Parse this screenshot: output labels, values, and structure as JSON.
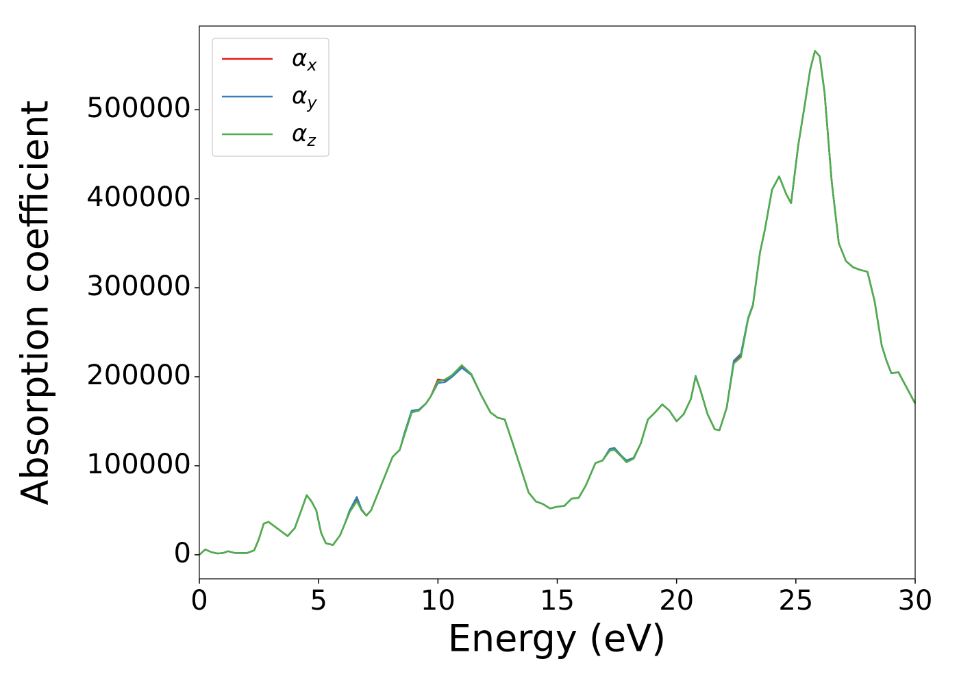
{
  "chart_data": {
    "type": "line",
    "xlabel": "Energy (eV)",
    "ylabel": "Absorption coefficient",
    "x": [
      0,
      0.25,
      0.5,
      0.75,
      1.0,
      1.2,
      1.5,
      2.0,
      2.3,
      2.5,
      2.7,
      2.9,
      3.2,
      3.5,
      3.7,
      4.0,
      4.3,
      4.5,
      4.7,
      4.9,
      5.1,
      5.3,
      5.6,
      5.9,
      6.1,
      6.3,
      6.6,
      6.8,
      7.0,
      7.2,
      7.5,
      7.8,
      8.1,
      8.4,
      8.6,
      8.9,
      9.2,
      9.5,
      9.7,
      10.0,
      10.3,
      10.6,
      11.0,
      11.4,
      11.8,
      12.2,
      12.5,
      12.8,
      13.1,
      13.5,
      13.8,
      14.1,
      14.4,
      14.7,
      15.0,
      15.3,
      15.6,
      15.9,
      16.2,
      16.6,
      16.9,
      17.2,
      17.4,
      17.7,
      17.9,
      18.2,
      18.5,
      18.8,
      19.1,
      19.4,
      19.7,
      20.0,
      20.3,
      20.6,
      20.8,
      21.0,
      21.3,
      21.6,
      21.8,
      22.1,
      22.4,
      22.7,
      23.0,
      23.2,
      23.5,
      23.7,
      24.0,
      24.3,
      24.6,
      24.8,
      25.1,
      25.4,
      25.6,
      25.8,
      26.0,
      26.2,
      26.5,
      26.8,
      27.1,
      27.4,
      27.7,
      28.0,
      28.3,
      28.6,
      28.8,
      29.0,
      29.3,
      29.6,
      30.0
    ],
    "series": [
      {
        "name": "αx",
        "color": "#e41a1c",
        "values": [
          0,
          6000,
          3000,
          1500,
          2000,
          4000,
          2000,
          2000,
          5000,
          18000,
          35000,
          37000,
          31000,
          25000,
          21000,
          30000,
          52000,
          67000,
          60000,
          50000,
          25000,
          13000,
          11000,
          22000,
          35000,
          48000,
          62000,
          50000,
          44000,
          50000,
          70000,
          90000,
          110000,
          118000,
          135000,
          160000,
          162000,
          170000,
          178000,
          197000,
          196000,
          202000,
          212000,
          203000,
          180000,
          160000,
          154000,
          152000,
          128000,
          95000,
          70000,
          60000,
          57000,
          52000,
          54000,
          55000,
          63000,
          64000,
          78000,
          103000,
          106000,
          117000,
          118000,
          110000,
          104000,
          108000,
          125000,
          152000,
          160000,
          169000,
          162000,
          150000,
          158000,
          175000,
          200000,
          185000,
          158000,
          141000,
          140000,
          165000,
          216000,
          224000,
          265000,
          280000,
          340000,
          365000,
          410000,
          425000,
          405000,
          395000,
          460000,
          510000,
          545000,
          566000,
          560000,
          520000,
          420000,
          350000,
          330000,
          323000,
          320000,
          318000,
          285000,
          235000,
          218000,
          204000,
          205000,
          190000,
          170000
        ]
      },
      {
        "name": "αy",
        "color": "#377eb8",
        "values": [
          0,
          6000,
          3000,
          1500,
          2000,
          4000,
          2000,
          2000,
          5000,
          18000,
          35000,
          37000,
          31000,
          25000,
          21000,
          30000,
          52000,
          67000,
          60000,
          50000,
          25000,
          13000,
          11000,
          22000,
          35000,
          50000,
          65000,
          51000,
          44000,
          50000,
          70000,
          90000,
          110000,
          118000,
          137000,
          162000,
          163000,
          170000,
          178000,
          193000,
          194000,
          200000,
          210000,
          202000,
          180000,
          160000,
          154000,
          152000,
          128000,
          95000,
          70000,
          60000,
          57000,
          52000,
          54000,
          55000,
          63000,
          64000,
          78000,
          103000,
          106000,
          119000,
          120000,
          111000,
          106000,
          109000,
          125000,
          152000,
          160000,
          169000,
          162000,
          150000,
          158000,
          175000,
          201000,
          185000,
          158000,
          141000,
          140000,
          165000,
          218000,
          226000,
          266000,
          281000,
          340000,
          365000,
          410000,
          425000,
          405000,
          395000,
          460000,
          510000,
          545000,
          566000,
          560000,
          520000,
          420000,
          350000,
          330000,
          323000,
          320000,
          318000,
          285000,
          235000,
          218000,
          204000,
          205000,
          190000,
          170000
        ]
      },
      {
        "name": "αz",
        "color": "#4daf4a",
        "values": [
          0,
          6000,
          3000,
          1500,
          2000,
          4000,
          2000,
          2000,
          5000,
          18000,
          35000,
          37000,
          31000,
          25000,
          21000,
          30000,
          52000,
          67000,
          60000,
          50000,
          25000,
          13000,
          11000,
          22000,
          35000,
          48000,
          60000,
          50000,
          44000,
          50000,
          70000,
          90000,
          110000,
          118000,
          135000,
          160000,
          162000,
          170000,
          178000,
          195000,
          197000,
          202000,
          213000,
          203000,
          180000,
          160000,
          154000,
          152000,
          128000,
          95000,
          70000,
          60000,
          57000,
          52000,
          54000,
          55000,
          63000,
          64000,
          78000,
          103000,
          106000,
          117000,
          118000,
          110000,
          104000,
          108000,
          125000,
          152000,
          160000,
          169000,
          162000,
          150000,
          158000,
          175000,
          200000,
          185000,
          158000,
          141000,
          140000,
          165000,
          215000,
          222000,
          265000,
          280000,
          340000,
          365000,
          410000,
          425000,
          405000,
          395000,
          460000,
          510000,
          545000,
          566000,
          560000,
          520000,
          420000,
          350000,
          330000,
          323000,
          320000,
          318000,
          285000,
          235000,
          218000,
          204000,
          205000,
          190000,
          170000
        ]
      }
    ],
    "xlim": [
      0,
      30
    ],
    "xticks": [
      0,
      5,
      10,
      15,
      20,
      25,
      30
    ],
    "ylim": [
      -27000,
      594000
    ],
    "yticks": [
      0,
      100000,
      200000,
      300000,
      400000,
      500000
    ],
    "legend": "upper left",
    "grid": false
  }
}
